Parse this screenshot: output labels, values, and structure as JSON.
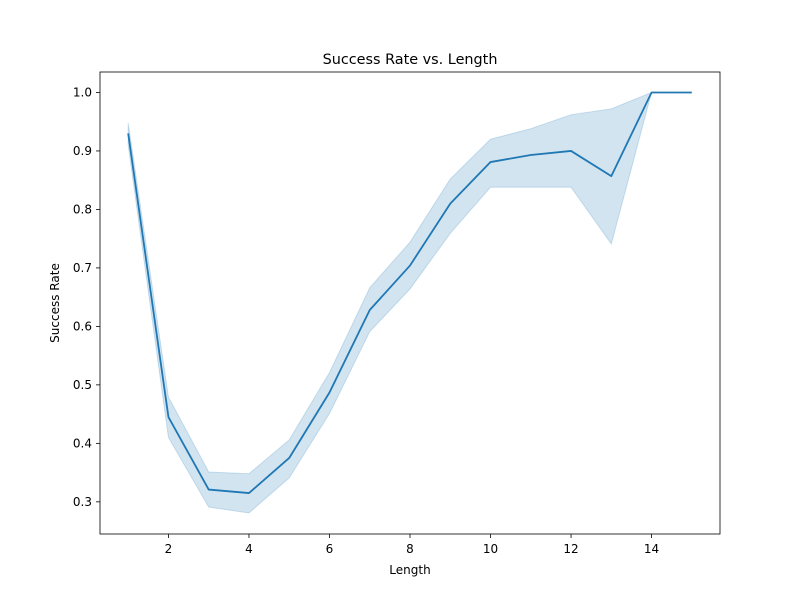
{
  "chart_data": {
    "type": "line",
    "title": "Success Rate vs. Length",
    "xlabel": "Length",
    "ylabel": "Success Rate",
    "xlim": [
      0.3,
      15.7
    ],
    "ylim": [
      0.245,
      1.035
    ],
    "xticks": [
      2,
      4,
      6,
      8,
      10,
      12,
      14
    ],
    "yticks": [
      0.3,
      0.4,
      0.5,
      0.6,
      0.7,
      0.8,
      0.9,
      1.0
    ],
    "xtick_labels": [
      "2",
      "4",
      "6",
      "8",
      "10",
      "12",
      "14"
    ],
    "ytick_labels": [
      "0.3",
      "0.4",
      "0.5",
      "0.6",
      "0.7",
      "0.8",
      "0.9",
      "1.0"
    ],
    "grid": false,
    "series": [
      {
        "color": "#1f77b4",
        "band_color": "#1f77b4",
        "band_opacity": 0.2,
        "x": [
          1,
          2,
          3,
          4,
          5,
          6,
          7,
          8,
          9,
          10,
          11,
          12,
          13,
          14,
          15
        ],
        "y": [
          0.93,
          0.445,
          0.321,
          0.315,
          0.375,
          0.487,
          0.628,
          0.704,
          0.81,
          0.881,
          0.893,
          0.9,
          0.857,
          1.0,
          1.0
        ],
        "lower": [
          0.91,
          0.41,
          0.291,
          0.281,
          0.341,
          0.451,
          0.591,
          0.664,
          0.759,
          0.838,
          0.838,
          0.838,
          0.741,
          1.0,
          1.0
        ],
        "upper": [
          0.948,
          0.479,
          0.351,
          0.348,
          0.406,
          0.521,
          0.666,
          0.744,
          0.852,
          0.92,
          0.938,
          0.962,
          0.972,
          1.0,
          1.0
        ]
      }
    ]
  }
}
